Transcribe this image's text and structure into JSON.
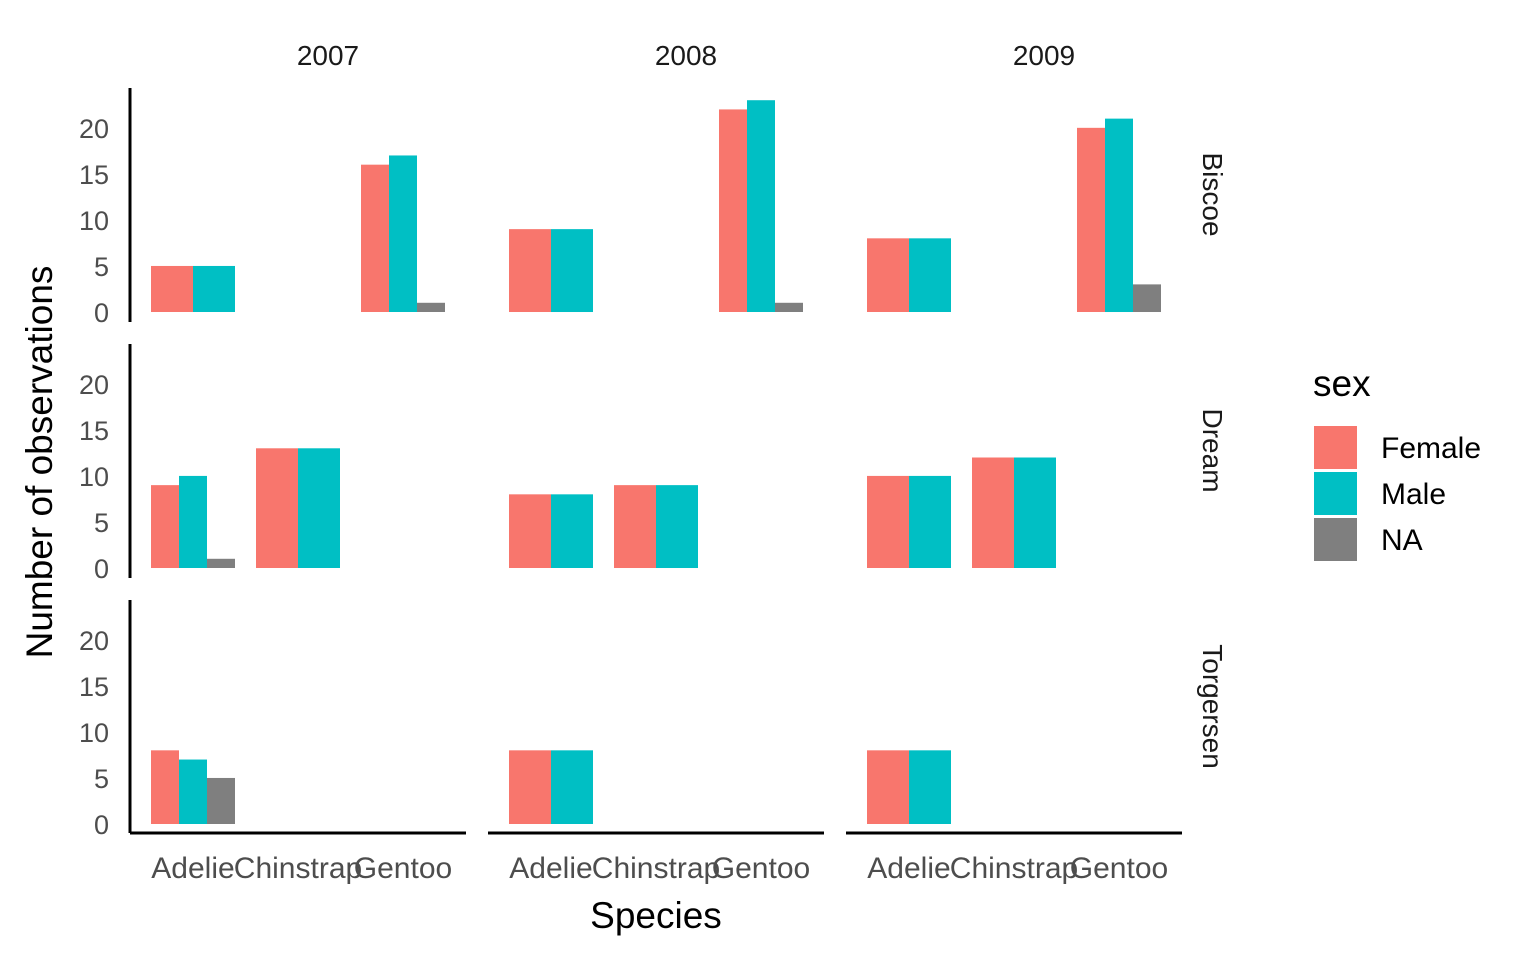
{
  "chart_data": {
    "type": "bar",
    "facet_columns": [
      "2007",
      "2008",
      "2009"
    ],
    "facet_rows": [
      "Biscoe",
      "Dream",
      "Torgersen"
    ],
    "categories": [
      "Adelie",
      "Chinstrap",
      "Gentoo"
    ],
    "xlabel": "Species",
    "ylabel": "Number of observations",
    "ylim": [
      0,
      24
    ],
    "yticks": [
      0,
      5,
      10,
      15,
      20
    ],
    "legend": {
      "title": "sex",
      "position": "right",
      "entries": [
        {
          "label": "Female",
          "color": "#F8766D"
        },
        {
          "label": "Male",
          "color": "#00BFC4"
        },
        {
          "label": "NA",
          "color": "#7F7F7F"
        }
      ]
    },
    "grid": false,
    "panels": [
      {
        "year": "2007",
        "island": "Biscoe",
        "bars": [
          {
            "species": "Adelie",
            "sex": "Female",
            "value": 5
          },
          {
            "species": "Adelie",
            "sex": "Male",
            "value": 5
          },
          {
            "species": "Gentoo",
            "sex": "Female",
            "value": 16
          },
          {
            "species": "Gentoo",
            "sex": "Male",
            "value": 17
          },
          {
            "species": "Gentoo",
            "sex": "NA",
            "value": 1
          }
        ]
      },
      {
        "year": "2008",
        "island": "Biscoe",
        "bars": [
          {
            "species": "Adelie",
            "sex": "Female",
            "value": 9
          },
          {
            "species": "Adelie",
            "sex": "Male",
            "value": 9
          },
          {
            "species": "Gentoo",
            "sex": "Female",
            "value": 22
          },
          {
            "species": "Gentoo",
            "sex": "Male",
            "value": 23
          },
          {
            "species": "Gentoo",
            "sex": "NA",
            "value": 1
          }
        ]
      },
      {
        "year": "2009",
        "island": "Biscoe",
        "bars": [
          {
            "species": "Adelie",
            "sex": "Female",
            "value": 8
          },
          {
            "species": "Adelie",
            "sex": "Male",
            "value": 8
          },
          {
            "species": "Gentoo",
            "sex": "Female",
            "value": 20
          },
          {
            "species": "Gentoo",
            "sex": "Male",
            "value": 21
          },
          {
            "species": "Gentoo",
            "sex": "NA",
            "value": 3
          }
        ]
      },
      {
        "year": "2007",
        "island": "Dream",
        "bars": [
          {
            "species": "Adelie",
            "sex": "Female",
            "value": 9
          },
          {
            "species": "Adelie",
            "sex": "Male",
            "value": 10
          },
          {
            "species": "Adelie",
            "sex": "NA",
            "value": 1
          },
          {
            "species": "Chinstrap",
            "sex": "Female",
            "value": 13
          },
          {
            "species": "Chinstrap",
            "sex": "Male",
            "value": 13
          }
        ]
      },
      {
        "year": "2008",
        "island": "Dream",
        "bars": [
          {
            "species": "Adelie",
            "sex": "Female",
            "value": 8
          },
          {
            "species": "Adelie",
            "sex": "Male",
            "value": 8
          },
          {
            "species": "Chinstrap",
            "sex": "Female",
            "value": 9
          },
          {
            "species": "Chinstrap",
            "sex": "Male",
            "value": 9
          }
        ]
      },
      {
        "year": "2009",
        "island": "Dream",
        "bars": [
          {
            "species": "Adelie",
            "sex": "Female",
            "value": 10
          },
          {
            "species": "Adelie",
            "sex": "Male",
            "value": 10
          },
          {
            "species": "Chinstrap",
            "sex": "Female",
            "value": 12
          },
          {
            "species": "Chinstrap",
            "sex": "Male",
            "value": 12
          }
        ]
      },
      {
        "year": "2007",
        "island": "Torgersen",
        "bars": [
          {
            "species": "Adelie",
            "sex": "Female",
            "value": 8
          },
          {
            "species": "Adelie",
            "sex": "Male",
            "value": 7
          },
          {
            "species": "Adelie",
            "sex": "NA",
            "value": 5
          }
        ]
      },
      {
        "year": "2008",
        "island": "Torgersen",
        "bars": [
          {
            "species": "Adelie",
            "sex": "Female",
            "value": 8
          },
          {
            "species": "Adelie",
            "sex": "Male",
            "value": 8
          }
        ]
      },
      {
        "year": "2009",
        "island": "Torgersen",
        "bars": [
          {
            "species": "Adelie",
            "sex": "Female",
            "value": 8
          },
          {
            "species": "Adelie",
            "sex": "Male",
            "value": 8
          }
        ]
      }
    ]
  }
}
